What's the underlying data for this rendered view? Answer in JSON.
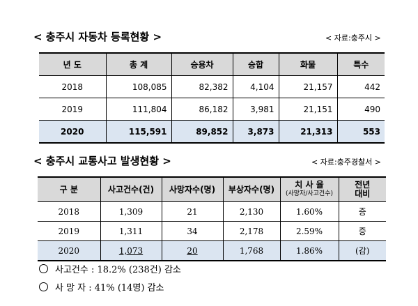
{
  "section1": {
    "title": "< 충주시 자동차 등록현황 >",
    "source": "< 자료:충주시 >",
    "headers": [
      "년 도",
      "총 계",
      "승용차",
      "승합",
      "화물",
      "특수"
    ],
    "rows": [
      [
        "2018",
        "108,085",
        "82,382",
        "4,104",
        "21,157",
        "442"
      ],
      [
        "2019",
        "111,804",
        "86,182",
        "3,981",
        "21,151",
        "490"
      ],
      [
        "2020",
        "115,591",
        "89,852",
        "3,873",
        "21,313",
        "553"
      ]
    ]
  },
  "section2": {
    "title": "< 충주시 교통사고 발생현황 >",
    "source": "< 자료:충주경찰서 >",
    "headers": [
      "구 분",
      "사고건수(건)",
      "사망자수(명)",
      "부상자수(명)",
      "치 사 율",
      "(사망자/사고건수)",
      "전년",
      "대비"
    ],
    "rows": [
      [
        "2018",
        "1,309",
        "21",
        "2,130",
        "1.60%",
        "증"
      ],
      [
        "2019",
        "1,311",
        "34",
        "2,178",
        "2.59%",
        "증"
      ],
      [
        "2020",
        "1,073",
        "20",
        "1,768",
        "1.86%",
        "(감)"
      ]
    ]
  },
  "notes": [
    "사고건수 : 18.2% (238건) 감소",
    "사 망 자 :  41% (14명) 감소"
  ]
}
